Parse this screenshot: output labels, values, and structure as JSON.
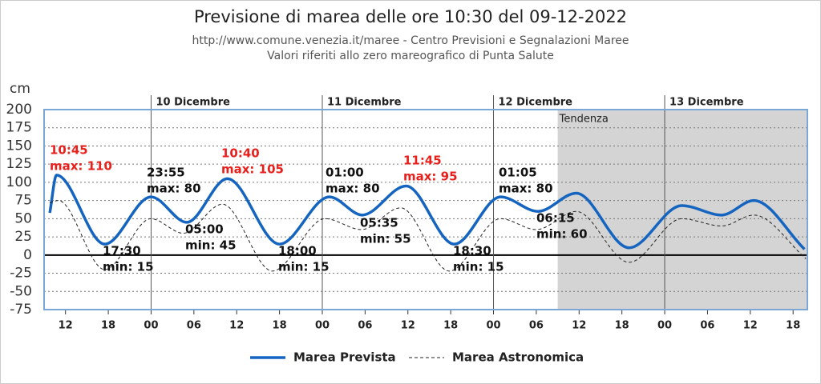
{
  "chart_data": {
    "type": "line",
    "title": "Previsione di marea delle ore 10:30 del 09-12-2022",
    "subtitle": [
      "http://www.comune.venezia.it/maree - Centro Previsioni e Segnalazioni Maree",
      "Valori riferiti allo zero mareografico di Punta Salute"
    ],
    "y_unit": "cm",
    "xlim": [
      9,
      116
    ],
    "ylim": [
      -75,
      200
    ],
    "yticks": [
      -75,
      -50,
      -25,
      0,
      25,
      50,
      75,
      100,
      125,
      150,
      175,
      200
    ],
    "xticks": [
      {
        "value": 12,
        "label": "12"
      },
      {
        "value": 18,
        "label": "18"
      },
      {
        "value": 24,
        "label": "00"
      },
      {
        "value": 30,
        "label": "06"
      },
      {
        "value": 36,
        "label": "12"
      },
      {
        "value": 42,
        "label": "18"
      },
      {
        "value": 48,
        "label": "00"
      },
      {
        "value": 54,
        "label": "06"
      },
      {
        "value": 60,
        "label": "12"
      },
      {
        "value": 66,
        "label": "18"
      },
      {
        "value": 72,
        "label": "00"
      },
      {
        "value": 78,
        "label": "06"
      },
      {
        "value": 84,
        "label": "12"
      },
      {
        "value": 90,
        "label": "18"
      },
      {
        "value": 96,
        "label": "00"
      },
      {
        "value": 102,
        "label": "06"
      },
      {
        "value": 108,
        "label": "12"
      },
      {
        "value": 114,
        "label": "18"
      }
    ],
    "day_labels": [
      {
        "value": 24,
        "label": "10 Dicembre"
      },
      {
        "value": 48,
        "label": "11 Dicembre"
      },
      {
        "value": 72,
        "label": "12 Dicembre"
      },
      {
        "value": 96,
        "label": "13 Dicembre"
      }
    ],
    "trend_region": {
      "from": 81,
      "label": "Tendenza"
    },
    "grid": true,
    "series": [
      {
        "name": "Marea Prevista",
        "color": "#1565c0",
        "style": "solid",
        "x": [
          9.8,
          10.75,
          17.5,
          24,
          29,
          34.7,
          42,
          49,
          53.6,
          59.75,
          66.5,
          73,
          78.25,
          83.6,
          91,
          98.4,
          104,
          108.5,
          115.6
        ],
        "values": [
          58,
          110,
          15,
          80,
          45,
          105,
          15,
          80,
          55,
          95,
          15,
          80,
          60,
          85,
          10,
          68,
          55,
          75,
          8
        ]
      },
      {
        "name": "Marea Astronomica",
        "color": "#222222",
        "style": "dashed",
        "x": [
          9.8,
          11,
          17.5,
          24,
          28.5,
          34,
          41,
          48.4,
          53.5,
          59,
          65.8,
          73,
          78,
          83.6,
          91,
          98.4,
          104,
          108.5,
          115.8
        ],
        "values": [
          72,
          75,
          -20,
          50,
          30,
          70,
          -22,
          50,
          35,
          65,
          -22,
          50,
          35,
          60,
          -10,
          50,
          40,
          55,
          -5
        ]
      }
    ],
    "annotations": [
      {
        "lines": [
          "10:45",
          "max: 110"
        ],
        "color": "#e8201c"
      },
      {
        "lines": [
          "17:30",
          "min: 15"
        ],
        "color": "#111111"
      },
      {
        "lines": [
          "23:55",
          "max: 80"
        ],
        "color": "#111111"
      },
      {
        "lines": [
          "05:00",
          "min: 45"
        ],
        "color": "#111111"
      },
      {
        "lines": [
          "10:40",
          "max: 105"
        ],
        "color": "#e8201c"
      },
      {
        "lines": [
          "18:00",
          "min: 15"
        ],
        "color": "#111111"
      },
      {
        "lines": [
          "01:00",
          "max: 80"
        ],
        "color": "#111111"
      },
      {
        "lines": [
          "05:35",
          "min: 55"
        ],
        "color": "#111111"
      },
      {
        "lines": [
          "11:45",
          "max: 95"
        ],
        "color": "#e8201c"
      },
      {
        "lines": [
          "18:30",
          "min: 15"
        ],
        "color": "#111111"
      },
      {
        "lines": [
          "01:05",
          "max: 80"
        ],
        "color": "#111111"
      },
      {
        "lines": [
          "06:15",
          "min: 60"
        ],
        "color": "#111111"
      }
    ]
  }
}
